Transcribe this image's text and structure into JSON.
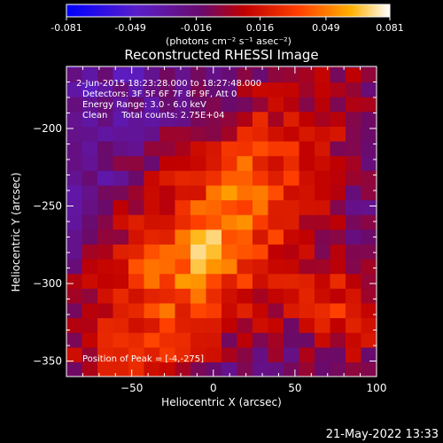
{
  "chart_data": {
    "type": "heatmap",
    "title": "Reconstructed RHESSI Image",
    "xlabel": "Heliocentric X (arcsec)",
    "ylabel": "Heliocentric Y (arcsec)",
    "xlim": [
      -90,
      100
    ],
    "ylim": [
      -360,
      -160
    ],
    "xticks": [
      -50,
      0,
      50,
      100
    ],
    "yticks": [
      -200,
      -250,
      -300,
      -350
    ],
    "colorbar": {
      "ticks": [
        "-0.081",
        "-0.049",
        "-0.016",
        "0.016",
        "0.049",
        "0.081"
      ],
      "range": [
        -0.081,
        0.081
      ],
      "units": "(photons cm⁻² s⁻¹ asec⁻²)",
      "colormap": "blue-purple-red-orange-yellow-white"
    },
    "annotations": [
      "2-Jun-2015 18:23:28.000 to 18:27:48.000",
      "Detectors: 3F 5F 6F 7F 8F 9F, Att 0",
      "Energy Range: 3.0 - 6.0 keV",
      "Clean     Total counts: 2.75E+04",
      "Position of Peak = [-4,-275]"
    ],
    "peak": {
      "x": -4,
      "y": -275,
      "value": 0.081
    },
    "secondary_peak": {
      "x": 15,
      "y": -235,
      "value": 0.045
    },
    "background_level": -0.03
  },
  "footer": {
    "timestamp": "21-May-2022 13:33"
  }
}
